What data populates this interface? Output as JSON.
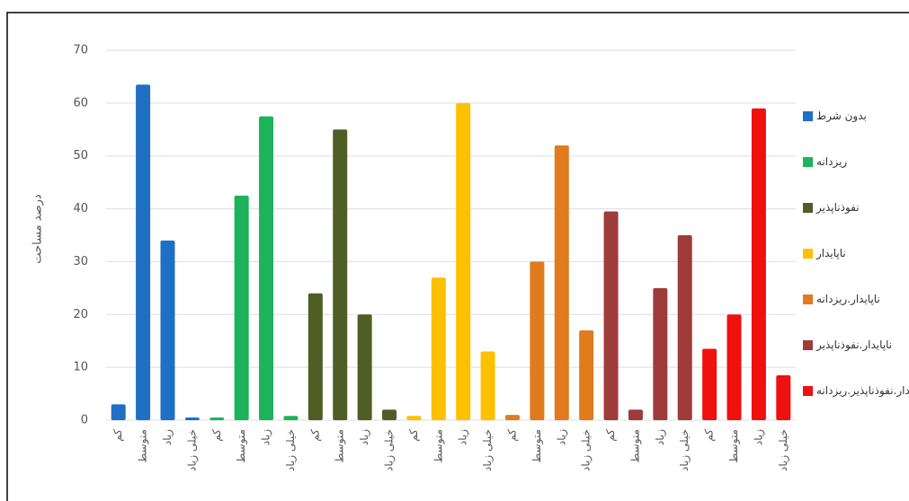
{
  "chart_data": {
    "type": "bar",
    "ylabel": "درصد مساحت",
    "categories": [
      "کم",
      "متوسط",
      "زیاد",
      "خیلی زیاد"
    ],
    "series": [
      {
        "name": "بدون شرط",
        "color": "#1f6fc5",
        "values": [
          3,
          63.5,
          34,
          0.5
        ]
      },
      {
        "name": "ریزدانه",
        "color": "#1db35a",
        "values": [
          0.5,
          42.5,
          57.5,
          0.8
        ]
      },
      {
        "name": "نفوذناپذیر",
        "color": "#4e5e25",
        "values": [
          24,
          55,
          20,
          2
        ]
      },
      {
        "name": "ناپایدار",
        "color": "#ffc000",
        "values": [
          0.8,
          27,
          60,
          13
        ]
      },
      {
        "name": "ناپایدار.ریزدانه",
        "color": "#e07b1e",
        "values": [
          1,
          30,
          52,
          17
        ]
      },
      {
        "name": "ناپایدار.نفوذناپذیر",
        "color": "#9e3b3b",
        "values": [
          39.5,
          2,
          25,
          35
        ]
      },
      {
        "name": "ناپایدار.نفوذناپذیر.ریزدانه",
        "color": "#f01010",
        "values": [
          13.5,
          20,
          59,
          8.5
        ]
      }
    ],
    "ylim": [
      0,
      70
    ],
    "yticks": [
      0,
      10,
      20,
      30,
      40,
      50,
      60,
      70
    ],
    "grid": true,
    "legend": "right"
  }
}
